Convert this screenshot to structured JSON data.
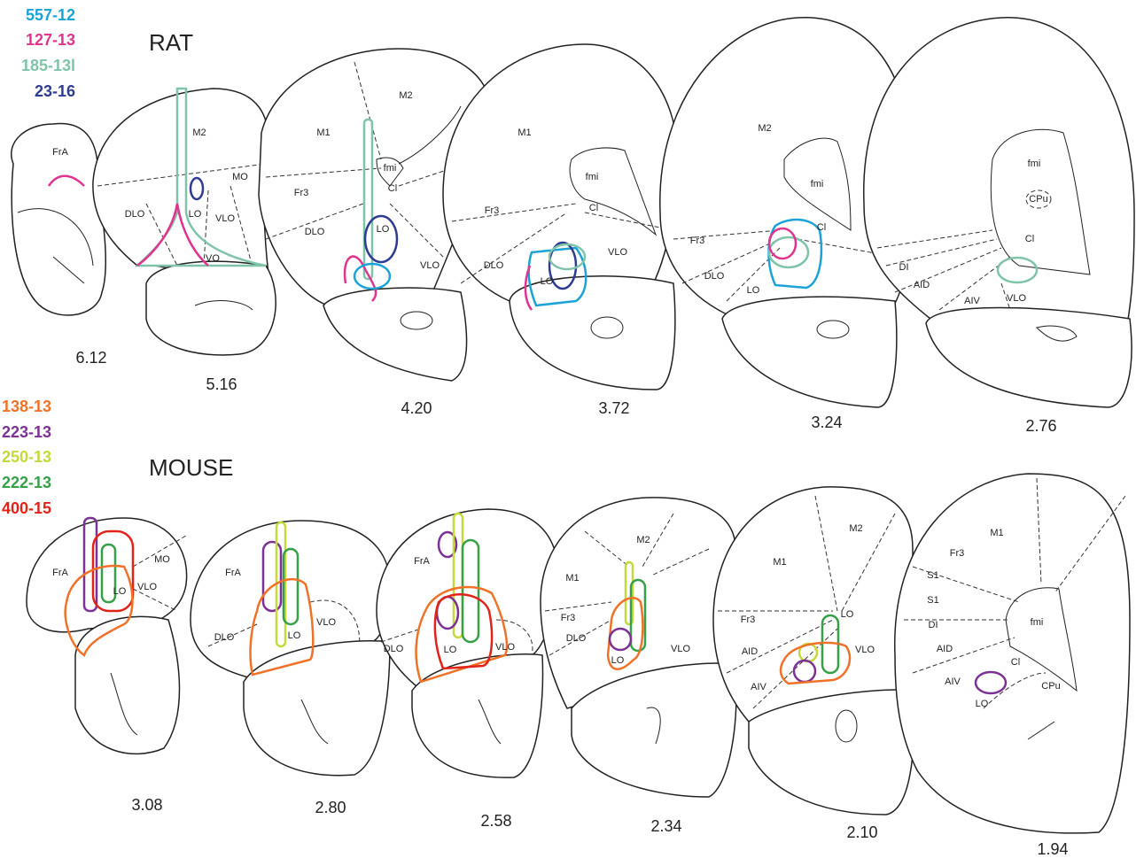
{
  "rat": {
    "title": "RAT",
    "legend": [
      {
        "label": "557-12",
        "color": "#1ba3d7"
      },
      {
        "label": "127-13",
        "color": "#e0348f"
      },
      {
        "label": "185-13l",
        "color": "#7fc4a8"
      },
      {
        "label": "23-16",
        "color": "#2e3c92"
      }
    ],
    "sections": [
      {
        "level": "6.12",
        "regions": [
          "FrA"
        ]
      },
      {
        "level": "5.16",
        "regions": [
          "M2",
          "MO",
          "DLO",
          "LO",
          "VLO",
          "VO"
        ]
      },
      {
        "level": "4.20",
        "regions": [
          "M2",
          "M1",
          "fmi",
          "Fr3",
          "Cl",
          "DLO",
          "LO",
          "VLO"
        ]
      },
      {
        "level": "3.72",
        "regions": [
          "M1",
          "fmi",
          "Fr3",
          "Cl",
          "DLO",
          "VLO",
          "LO"
        ]
      },
      {
        "level": "3.24",
        "regions": [
          "M2",
          "fmi",
          "Cl",
          "Fr3",
          "DLO",
          "LO"
        ]
      },
      {
        "level": "2.76",
        "regions": [
          "fmi",
          "CPu",
          "Cl",
          "DI",
          "AID",
          "AIV",
          "VLO"
        ]
      }
    ]
  },
  "mouse": {
    "title": "MOUSE",
    "legend": [
      {
        "label": "138-13",
        "color": "#f07228"
      },
      {
        "label": "223-13",
        "color": "#7b3294"
      },
      {
        "label": "250-13",
        "color": "#c5d93a"
      },
      {
        "label": "222-13",
        "color": "#36a047"
      },
      {
        "label": "400-15",
        "color": "#e2231a"
      }
    ],
    "sections": [
      {
        "level": "3.08",
        "regions": [
          "FrA",
          "MO",
          "LO",
          "VLO"
        ]
      },
      {
        "level": "2.80",
        "regions": [
          "FrA",
          "VLO",
          "DLO",
          "LO"
        ]
      },
      {
        "level": "2.58",
        "regions": [
          "FrA",
          "DLO",
          "VLO",
          "LO"
        ]
      },
      {
        "level": "2.34",
        "regions": [
          "M2",
          "M1",
          "Fr3",
          "DLO",
          "LO",
          "VLO"
        ]
      },
      {
        "level": "2.10",
        "regions": [
          "M2",
          "M1",
          "Fr3",
          "LO",
          "AID",
          "VLO",
          "AIV"
        ]
      },
      {
        "level": "1.94",
        "regions": [
          "M1",
          "Fr3",
          "S1",
          "S1",
          "DI",
          "AID",
          "fmi",
          "Cl",
          "AIV",
          "CPu",
          "LO"
        ]
      }
    ]
  }
}
